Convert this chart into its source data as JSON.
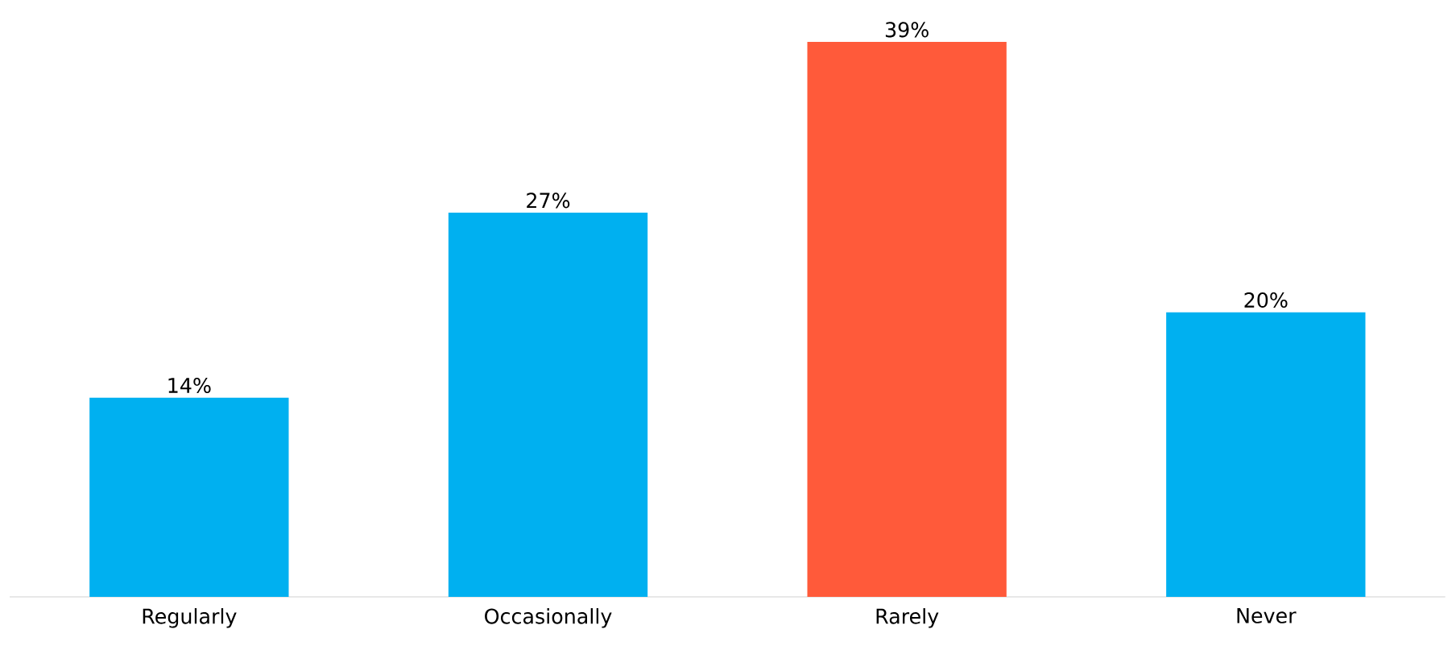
{
  "chart_data": {
    "type": "bar",
    "categories": [
      "Regularly",
      "Occasionally",
      "Rarely",
      "Never"
    ],
    "values": [
      14,
      27,
      39,
      20
    ],
    "colors": [
      "#00b0f0",
      "#00b0f0",
      "#ff5a3a",
      "#00b0f0"
    ],
    "value_labels": [
      "14%",
      "27%",
      "39%",
      "20%"
    ]
  }
}
